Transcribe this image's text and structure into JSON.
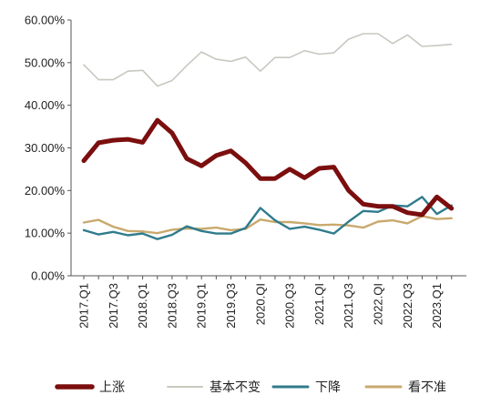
{
  "chart_data": {
    "type": "line",
    "title": "",
    "xlabel": "",
    "ylabel": "",
    "ylim": [
      0,
      60
    ],
    "y_ticks": [
      "0.00%",
      "10.00%",
      "20.00%",
      "30.00%",
      "40.00%",
      "50.00%",
      "60.00%"
    ],
    "grid": false,
    "legend_position": "bottom",
    "x_tick_labels": [
      "2017.Q1",
      "2017.Q3",
      "2018.Q1",
      "2018.Q3",
      "2019.Q1",
      "2019.Q3",
      "2020.QI",
      "2020.Q3",
      "2021.QI",
      "2021.Q3",
      "2022.QI",
      "2022.Q3",
      "2023.Q1"
    ],
    "x": [
      "2017.Q1",
      "2017.Q2",
      "2017.Q3",
      "2017.Q4",
      "2018.Q1",
      "2018.Q2",
      "2018.Q3",
      "2018.Q4",
      "2019.Q1",
      "2019.Q2",
      "2019.Q3",
      "2019.Q4",
      "2020.Q1",
      "2020.Q2",
      "2020.Q3",
      "2020.Q4",
      "2021.Q1",
      "2021.Q2",
      "2021.Q3",
      "2021.Q4",
      "2022.Q1",
      "2022.Q2",
      "2022.Q3",
      "2022.Q4",
      "2023.Q1",
      "2023.Q2"
    ],
    "series": [
      {
        "name": "上涨",
        "color": "#7B0E0E",
        "values": [
          27.0,
          31.2,
          31.8,
          32.0,
          31.3,
          36.5,
          33.5,
          27.5,
          25.8,
          28.2,
          29.3,
          26.5,
          22.8,
          22.8,
          25.0,
          23.0,
          25.2,
          25.5,
          20.0,
          16.8,
          16.3,
          16.3,
          14.8,
          14.3,
          18.5,
          15.8
        ]
      },
      {
        "name": "基本不变",
        "color": "#C8C8C0",
        "values": [
          49.5,
          46.0,
          46.0,
          48.0,
          48.2,
          44.5,
          45.8,
          49.3,
          52.5,
          50.8,
          50.3,
          51.3,
          48.0,
          51.2,
          51.2,
          52.8,
          52.0,
          52.3,
          55.5,
          56.8,
          56.8,
          54.5,
          56.5,
          53.8,
          54.0,
          54.3
        ]
      },
      {
        "name": "下降",
        "color": "#2F7B8C",
        "values": [
          10.7,
          9.7,
          10.3,
          9.5,
          9.9,
          8.6,
          9.6,
          11.6,
          10.5,
          9.9,
          9.9,
          11.2,
          15.9,
          13.0,
          11.0,
          11.5,
          10.8,
          9.9,
          12.7,
          15.2,
          15.0,
          16.5,
          16.3,
          18.5,
          14.5,
          16.5
        ]
      },
      {
        "name": "看不准",
        "color": "#C9A96E",
        "values": [
          12.5,
          13.1,
          11.5,
          10.5,
          10.4,
          10.0,
          10.8,
          11.1,
          11.0,
          11.3,
          10.7,
          11.0,
          13.2,
          12.6,
          12.6,
          12.3,
          11.9,
          12.0,
          11.8,
          11.3,
          12.7,
          13.0,
          12.3,
          14.0,
          13.3,
          13.5
        ]
      }
    ]
  }
}
